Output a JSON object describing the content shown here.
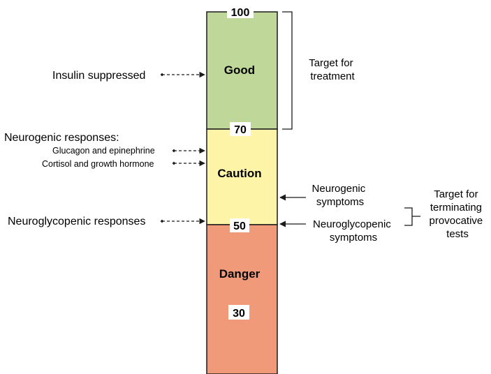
{
  "colors": {
    "good": "#BFD89A",
    "caution": "#FEF4A8",
    "danger": "#F09A7A",
    "stroke": "#1a1a1a"
  },
  "scale": {
    "ticks": [
      "100",
      "70",
      "50",
      "30"
    ],
    "zones": {
      "good": "Good",
      "caution": "Caution",
      "danger": "Danger"
    }
  },
  "left": {
    "insulin": "Insulin suppressed",
    "neurogenic_header": "Neurogenic responses:",
    "glucagon": "Glucagon and epinephrine",
    "cortisol": "Cortisol and growth hormone",
    "neuroglycopenic": "Neuroglycopenic responses"
  },
  "right": {
    "target_treatment": [
      "Target for",
      "treatment"
    ],
    "neurogenic_symptoms": [
      "Neurogenic",
      "symptoms"
    ],
    "neuroglycopenic_symptoms": [
      "Neuroglycopenic",
      "symptoms"
    ],
    "target_terminating": [
      "Target for",
      "terminating",
      "provocative",
      "tests"
    ]
  }
}
